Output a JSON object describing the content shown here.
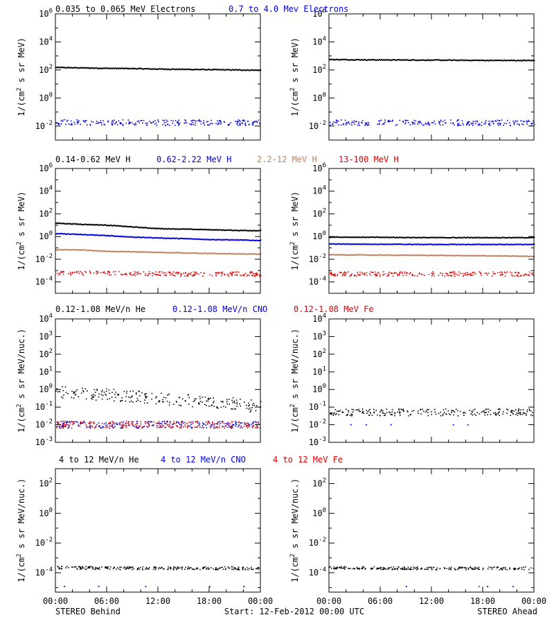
{
  "colors": {
    "black": "#000000",
    "blue": "#0000dd",
    "tan": "#c08060",
    "red": "#dd0000"
  },
  "footer": {
    "left": "STEREO Behind",
    "center": "Start: 12-Feb-2012 00:00 UTC",
    "right": "STEREO Ahead"
  },
  "chart_data": [
    {
      "type": "scatter",
      "row": 0,
      "spacecraft": "STEREO Behind",
      "ylabel": "1/(cm² s sr MeV)",
      "yscale": "log",
      "ylim": [
        0.001,
        1000000
      ],
      "yticks": [
        {
          "v": 0.01,
          "m": "10",
          "e": "-2"
        },
        {
          "v": 1,
          "m": "10",
          "e": "0"
        },
        {
          "v": 100,
          "m": "10",
          "e": "2"
        },
        {
          "v": 10000,
          "m": "10",
          "e": "4"
        },
        {
          "v": 1000000,
          "m": "10",
          "e": "6"
        }
      ],
      "xlim": [
        0,
        24
      ],
      "xticks": [
        "00:00",
        "06:00",
        "12:00",
        "18:00",
        "00:00"
      ],
      "series": [
        {
          "name": "0.035 to 0.065 MeV Electrons",
          "color": "black",
          "style": "line",
          "x": [
            0,
            3,
            6,
            9,
            12,
            15,
            18,
            21,
            24
          ],
          "y": [
            150,
            140,
            130,
            125,
            115,
            110,
            105,
            100,
            95
          ]
        },
        {
          "name": "0.7 to 4.0 Mev Electrons",
          "color": "blue",
          "style": "scatter",
          "x": [
            0,
            6,
            12,
            18,
            24
          ],
          "y": [
            0.018,
            0.018,
            0.017,
            0.018,
            0.017
          ]
        }
      ]
    },
    {
      "type": "scatter",
      "row": 0,
      "spacecraft": "STEREO Ahead",
      "ylabel": "1/(cm² s sr MeV)",
      "yscale": "log",
      "ylim": [
        0.001,
        1000000
      ],
      "yticks": [
        {
          "v": 0.01,
          "m": "10",
          "e": "-2"
        },
        {
          "v": 1,
          "m": "10",
          "e": "0"
        },
        {
          "v": 100,
          "m": "10",
          "e": "2"
        },
        {
          "v": 10000,
          "m": "10",
          "e": "4"
        },
        {
          "v": 1000000,
          "m": "10",
          "e": "6"
        }
      ],
      "xlim": [
        0,
        24
      ],
      "xticks": [
        "00:00",
        "06:00",
        "12:00",
        "18:00",
        "00:00"
      ],
      "series": [
        {
          "name": "0.035 to 0.065 MeV Electrons",
          "color": "black",
          "style": "line",
          "x": [
            0,
            6,
            12,
            18,
            24
          ],
          "y": [
            550,
            520,
            500,
            480,
            470
          ]
        },
        {
          "name": "0.7 to 4.0 Mev Electrons",
          "color": "blue",
          "style": "scatter",
          "x": [
            0,
            6,
            12,
            18,
            24
          ],
          "y": [
            0.018,
            0.017,
            0.018,
            0.017,
            0.017
          ]
        }
      ]
    },
    {
      "type": "scatter",
      "row": 1,
      "spacecraft": "STEREO Behind",
      "ylabel": "1/(cm² s sr MeV)",
      "yscale": "log",
      "ylim": [
        1e-05,
        1000000
      ],
      "yticks": [
        {
          "v": 0.0001,
          "m": "10",
          "e": "-4"
        },
        {
          "v": 0.01,
          "m": "10",
          "e": "-2"
        },
        {
          "v": 1,
          "m": "10",
          "e": "0"
        },
        {
          "v": 100,
          "m": "10",
          "e": "2"
        },
        {
          "v": 10000,
          "m": "10",
          "e": "4"
        },
        {
          "v": 1000000,
          "m": "10",
          "e": "6"
        }
      ],
      "xlim": [
        0,
        24
      ],
      "xticks": [
        "00:00",
        "06:00",
        "12:00",
        "18:00",
        "00:00"
      ],
      "series": [
        {
          "name": "0.14-0.62 MeV H",
          "color": "black",
          "style": "line",
          "x": [
            0,
            3,
            6,
            9,
            12,
            15,
            18,
            21,
            24
          ],
          "y": [
            15,
            12,
            10,
            7,
            5,
            4.5,
            4,
            3.5,
            3.3
          ]
        },
        {
          "name": "0.62-2.22 MeV H",
          "color": "blue",
          "style": "line",
          "x": [
            0,
            3,
            6,
            9,
            12,
            15,
            18,
            21,
            24
          ],
          "y": [
            1.8,
            1.5,
            1.2,
            0.9,
            0.75,
            0.65,
            0.55,
            0.5,
            0.45
          ]
        },
        {
          "name": "2.2-12 MeV H",
          "color": "tan",
          "style": "line",
          "x": [
            0,
            3,
            6,
            9,
            12,
            15,
            18,
            21,
            24
          ],
          "y": [
            0.07,
            0.065,
            0.05,
            0.045,
            0.04,
            0.036,
            0.032,
            0.03,
            0.028
          ]
        },
        {
          "name": "13-100 MeV H",
          "color": "red",
          "style": "scatter",
          "x": [
            0,
            6,
            12,
            18,
            24
          ],
          "y": [
            0.0006,
            0.00055,
            0.0005,
            0.0005,
            0.0005
          ]
        }
      ]
    },
    {
      "type": "scatter",
      "row": 1,
      "spacecraft": "STEREO Ahead",
      "ylabel": "1/(cm² s sr MeV)",
      "yscale": "log",
      "ylim": [
        1e-05,
        1000000
      ],
      "yticks": [
        {
          "v": 0.0001,
          "m": "10",
          "e": "-4"
        },
        {
          "v": 0.01,
          "m": "10",
          "e": "-2"
        },
        {
          "v": 1,
          "m": "10",
          "e": "0"
        },
        {
          "v": 100,
          "m": "10",
          "e": "2"
        },
        {
          "v": 10000,
          "m": "10",
          "e": "4"
        },
        {
          "v": 1000000,
          "m": "10",
          "e": "6"
        }
      ],
      "xlim": [
        0,
        24
      ],
      "xticks": [
        "00:00",
        "06:00",
        "12:00",
        "18:00",
        "00:00"
      ],
      "series": [
        {
          "name": "0.14-0.62 MeV H",
          "color": "black",
          "style": "line",
          "x": [
            0,
            6,
            12,
            18,
            24
          ],
          "y": [
            0.9,
            0.85,
            0.8,
            0.8,
            0.8
          ]
        },
        {
          "name": "0.62-2.22 MeV H",
          "color": "blue",
          "style": "line",
          "x": [
            0,
            6,
            12,
            18,
            24
          ],
          "y": [
            0.22,
            0.21,
            0.2,
            0.2,
            0.2
          ]
        },
        {
          "name": "2.2-12 MeV H",
          "color": "tan",
          "style": "line",
          "x": [
            0,
            6,
            12,
            18,
            24
          ],
          "y": [
            0.025,
            0.023,
            0.022,
            0.02,
            0.018
          ]
        },
        {
          "name": "13-100 MeV H",
          "color": "red",
          "style": "scatter",
          "x": [
            0,
            6,
            12,
            18,
            24
          ],
          "y": [
            0.0005,
            0.0005,
            0.0005,
            0.0005,
            0.0005
          ]
        }
      ]
    },
    {
      "type": "scatter",
      "row": 2,
      "spacecraft": "STEREO Behind",
      "ylabel": "1/(cm² s sr MeV/nuc.)",
      "yscale": "log",
      "ylim": [
        0.001,
        10000
      ],
      "yticks": [
        {
          "v": 0.001,
          "m": "10",
          "e": "-3"
        },
        {
          "v": 0.01,
          "m": "10",
          "e": "-2"
        },
        {
          "v": 0.1,
          "m": "10",
          "e": "-1"
        },
        {
          "v": 1,
          "m": "10",
          "e": "0"
        },
        {
          "v": 10,
          "m": "10",
          "e": "1"
        },
        {
          "v": 100,
          "m": "10",
          "e": "2"
        },
        {
          "v": 1000,
          "m": "10",
          "e": "3"
        },
        {
          "v": 10000,
          "m": "10",
          "e": "4"
        }
      ],
      "xlim": [
        0,
        24
      ],
      "xticks": [
        "00:00",
        "06:00",
        "12:00",
        "18:00",
        "00:00"
      ],
      "series": [
        {
          "name": "0.12-1.08 MeV/n He",
          "color": "black",
          "style": "scatter",
          "x": [
            0,
            3,
            6,
            9,
            12,
            15,
            18,
            21,
            24
          ],
          "y": [
            0.8,
            0.6,
            0.5,
            0.4,
            0.3,
            0.25,
            0.2,
            0.15,
            0.1
          ]
        },
        {
          "name": "0.12-1.08 MeV/n CNO",
          "color": "blue",
          "style": "scatter",
          "x": [
            0,
            6,
            12,
            18,
            24
          ],
          "y": [
            0.01,
            0.01,
            0.01,
            0.01,
            0.01
          ]
        },
        {
          "name": "0.12-1.08 MeV Fe",
          "color": "red",
          "style": "scatter",
          "x": [
            0,
            6,
            12,
            18,
            24
          ],
          "y": [
            0.01,
            0.01,
            0.01,
            0.01,
            0.01
          ]
        }
      ]
    },
    {
      "type": "scatter",
      "row": 2,
      "spacecraft": "STEREO Ahead",
      "ylabel": "1/(cm² s sr MeV/nuc.)",
      "yscale": "log",
      "ylim": [
        0.001,
        10000
      ],
      "yticks": [
        {
          "v": 0.001,
          "m": "10",
          "e": "-3"
        },
        {
          "v": 0.01,
          "m": "10",
          "e": "-2"
        },
        {
          "v": 0.1,
          "m": "10",
          "e": "-1"
        },
        {
          "v": 1,
          "m": "10",
          "e": "0"
        },
        {
          "v": 10,
          "m": "10",
          "e": "1"
        },
        {
          "v": 100,
          "m": "10",
          "e": "2"
        },
        {
          "v": 1000,
          "m": "10",
          "e": "3"
        },
        {
          "v": 10000,
          "m": "10",
          "e": "4"
        }
      ],
      "xlim": [
        0,
        24
      ],
      "xticks": [
        "00:00",
        "06:00",
        "12:00",
        "18:00",
        "00:00"
      ],
      "series": [
        {
          "name": "0.12-1.08 MeV/n He",
          "color": "black",
          "style": "scatter",
          "x": [
            0,
            6,
            12,
            18,
            24
          ],
          "y": [
            0.05,
            0.05,
            0.05,
            0.05,
            0.05
          ]
        },
        {
          "name": "0.12-1.08 MeV/n CNO",
          "color": "blue",
          "style": "scatter",
          "x": [
            2.5,
            4.3,
            7.2,
            14.5,
            16.2
          ],
          "y": [
            0.01,
            0.01,
            0.01,
            0.01,
            0.01
          ]
        }
      ]
    },
    {
      "type": "scatter",
      "row": 3,
      "spacecraft": "STEREO Behind",
      "ylabel": "1/(cm² s sr MeV/nuc.)",
      "yscale": "log",
      "ylim": [
        5e-06,
        1000
      ],
      "yticks": [
        {
          "v": 0.0001,
          "m": "10",
          "e": "-4"
        },
        {
          "v": 0.01,
          "m": "10",
          "e": "-2"
        },
        {
          "v": 1,
          "m": "10",
          "e": "0"
        },
        {
          "v": 100,
          "m": "10",
          "e": "2"
        }
      ],
      "xlim": [
        0,
        24
      ],
      "xticks": [
        "00:00",
        "06:00",
        "12:00",
        "18:00",
        "00:00"
      ],
      "series": [
        {
          "name": "4 to 12 MeV/n He",
          "color": "black",
          "style": "scatter",
          "x": [
            0,
            6,
            12,
            18,
            24
          ],
          "y": [
            0.00022,
            0.0002,
            0.0002,
            0.0002,
            0.0002
          ]
        },
        {
          "name": "4 to 12 MeV/n CNO",
          "color": "blue",
          "style": "scatter",
          "x": [
            1,
            5,
            10.5,
            18,
            22
          ],
          "y": [
            1.2e-05,
            1.2e-05,
            1.2e-05,
            1.2e-05,
            1.2e-05
          ]
        },
        {
          "name": "4 to 12 MeV Fe",
          "color": "red",
          "style": "scatter",
          "x": [],
          "y": []
        }
      ]
    },
    {
      "type": "scatter",
      "row": 3,
      "spacecraft": "STEREO Ahead",
      "ylabel": "1/(cm² s sr MeV/nuc.)",
      "yscale": "log",
      "ylim": [
        5e-06,
        1000
      ],
      "yticks": [
        {
          "v": 0.0001,
          "m": "10",
          "e": "-4"
        },
        {
          "v": 0.01,
          "m": "10",
          "e": "-2"
        },
        {
          "v": 1,
          "m": "10",
          "e": "0"
        },
        {
          "v": 100,
          "m": "10",
          "e": "2"
        }
      ],
      "xlim": [
        0,
        24
      ],
      "xticks": [
        "00:00",
        "06:00",
        "12:00",
        "18:00",
        "00:00"
      ],
      "series": [
        {
          "name": "4 to 12 MeV/n He",
          "color": "black",
          "style": "scatter",
          "x": [
            0,
            6,
            12,
            18,
            24
          ],
          "y": [
            0.00022,
            0.0002,
            0.0002,
            0.0002,
            0.0002
          ]
        },
        {
          "name": "4 to 12 MeV/n CNO",
          "color": "blue",
          "style": "scatter",
          "x": [
            9,
            18.5,
            21.5
          ],
          "y": [
            1.2e-05,
            1.2e-05,
            1.2e-05
          ]
        },
        {
          "name": "4 to 12 MeV Fe",
          "color": "red",
          "style": "scatter",
          "x": [
            17.5
          ],
          "y": [
            1.2e-05
          ]
        }
      ]
    }
  ]
}
